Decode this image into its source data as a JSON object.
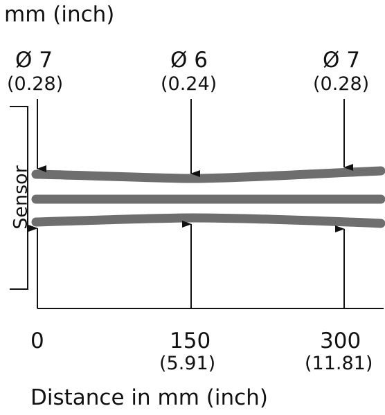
{
  "unit_caption": "mm (inch)",
  "sensor_label": "Sensor",
  "spot_diameters": [
    {
      "value": "Ø 7",
      "inch": "(0.28)"
    },
    {
      "value": "Ø 6",
      "inch": "(0.24)"
    },
    {
      "value": "Ø 7",
      "inch": "(0.28)"
    }
  ],
  "distances": [
    {
      "value": "0",
      "inch": ""
    },
    {
      "value": "150",
      "inch": "(5.91)"
    },
    {
      "value": "300",
      "inch": "(11.81)"
    }
  ],
  "x_axis_label": "Distance in mm (inch)",
  "colors": {
    "beam": "#6e6e6e",
    "lines": "#111111"
  }
}
